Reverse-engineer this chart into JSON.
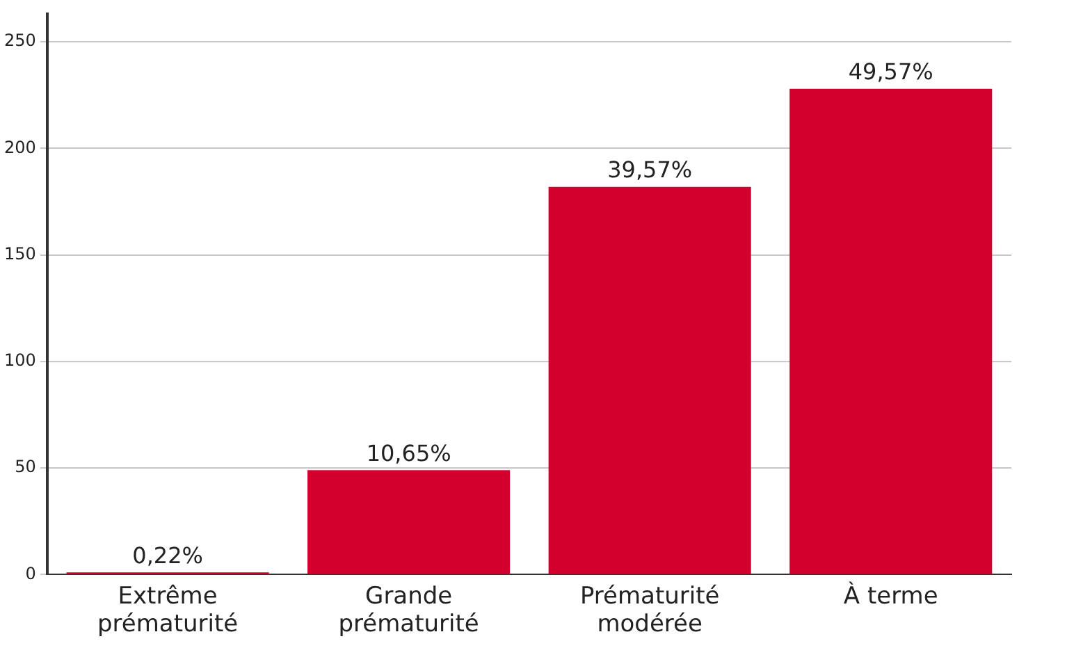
{
  "chart_data": {
    "type": "bar",
    "categories": [
      "Extrême prématurité",
      "Grande prématurité",
      "Prématurité modérée",
      "À terme"
    ],
    "values": [
      1,
      49,
      182,
      228
    ],
    "annotations": [
      {
        "text": "0,22%",
        "x": "Extrême prématurité",
        "y": 1
      },
      {
        "text": "10,65%",
        "x": "Grande prématurité",
        "y": 49
      },
      {
        "text": "39,57%",
        "x": "Prématurité modérée",
        "y": 182
      },
      {
        "text": "49,57%",
        "x": "À terme",
        "y": 228
      }
    ],
    "color": "#d3002e",
    "ylim": [
      0,
      263
    ],
    "yticks": [
      0,
      50,
      100,
      150,
      200,
      250
    ],
    "grid": "y",
    "legend": false
  }
}
